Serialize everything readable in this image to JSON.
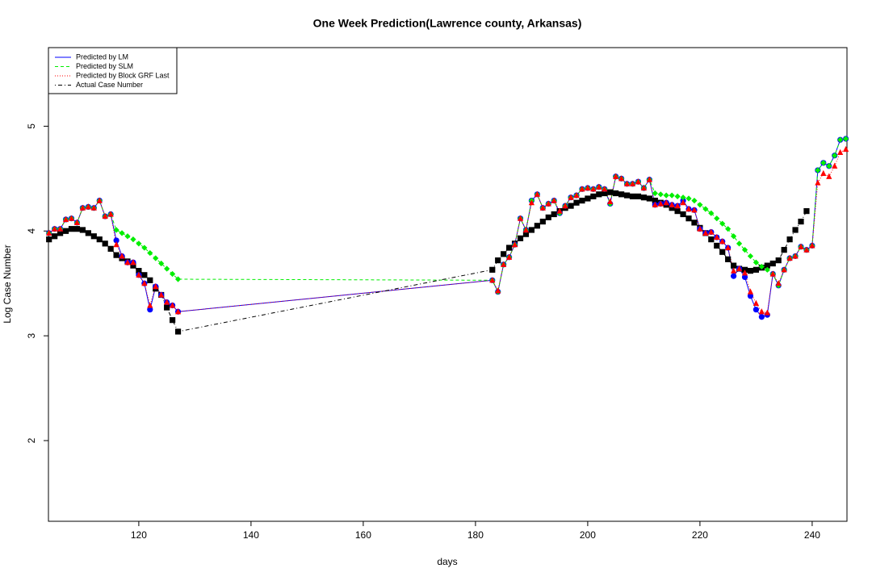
{
  "chart_data": {
    "type": "line",
    "title": "One Week Prediction(Lawrence county, Arkansas)",
    "x_label": "days",
    "y_label": "Log Case Number",
    "xlim": [
      103.9,
      246.2
    ],
    "ylim": [
      1.23,
      5.75
    ],
    "xticks": [
      120,
      140,
      160,
      180,
      200,
      220,
      240
    ],
    "yticks": [
      2,
      3,
      4,
      5
    ],
    "grid": false,
    "legend": "top-left",
    "x": [
      104,
      105,
      106,
      107,
      108,
      109,
      110,
      111,
      112,
      113,
      114,
      115,
      116,
      117,
      118,
      119,
      120,
      121,
      122,
      123,
      124,
      125,
      126,
      127,
      183,
      184,
      185,
      186,
      187,
      188,
      189,
      190,
      191,
      192,
      193,
      194,
      195,
      196,
      197,
      198,
      199,
      200,
      201,
      202,
      203,
      204,
      205,
      206,
      207,
      208,
      209,
      210,
      211,
      212,
      213,
      214,
      215,
      216,
      217,
      218,
      219,
      220,
      221,
      222,
      223,
      224,
      225,
      226,
      227,
      228,
      229,
      230,
      231,
      232,
      233,
      234,
      235,
      236,
      237,
      238,
      239,
      240,
      241,
      242,
      243,
      244,
      245,
      246
    ],
    "series": [
      {
        "name": "Predicted by LM",
        "color": "#0000ff",
        "line_style": "solid",
        "marker": "circle",
        "values": [
          3.98,
          4.02,
          4.02,
          4.11,
          4.12,
          4.08,
          4.22,
          4.23,
          4.22,
          4.29,
          4.14,
          4.16,
          3.91,
          3.76,
          3.7,
          3.7,
          3.58,
          3.5,
          3.25,
          3.47,
          3.39,
          3.32,
          3.29,
          3.23,
          3.53,
          3.42,
          3.68,
          3.75,
          3.87,
          4.12,
          4.01,
          4.29,
          4.35,
          4.22,
          4.26,
          4.29,
          4.17,
          4.24,
          4.32,
          4.34,
          4.4,
          4.41,
          4.4,
          4.42,
          4.4,
          4.26,
          4.52,
          4.5,
          4.45,
          4.45,
          4.47,
          4.41,
          4.49,
          4.25,
          4.26,
          4.27,
          4.25,
          4.24,
          4.29,
          4.21,
          4.2,
          4.02,
          3.98,
          3.99,
          3.94,
          3.9,
          3.84,
          3.57,
          3.64,
          3.56,
          3.38,
          3.25,
          3.18,
          3.2,
          3.59,
          3.48,
          3.63,
          3.74,
          3.76,
          3.85,
          3.82,
          3.86,
          4.58,
          4.65,
          4.62,
          4.72,
          4.87,
          4.88
        ]
      },
      {
        "name": "Predicted by SLM",
        "color": "#00ee00",
        "line_style": "dashed",
        "marker": "diamond",
        "values": [
          3.98,
          4.02,
          4.02,
          4.11,
          4.12,
          4.08,
          4.22,
          4.23,
          4.22,
          4.29,
          4.14,
          4.16,
          4.01,
          3.98,
          3.95,
          3.92,
          3.88,
          3.84,
          3.79,
          3.74,
          3.69,
          3.64,
          3.59,
          3.54,
          3.53,
          3.42,
          3.68,
          3.75,
          3.87,
          4.12,
          4.01,
          4.29,
          4.35,
          4.22,
          4.26,
          4.29,
          4.17,
          4.24,
          4.32,
          4.34,
          4.4,
          4.41,
          4.4,
          4.42,
          4.4,
          4.26,
          4.52,
          4.5,
          4.45,
          4.45,
          4.47,
          4.41,
          4.49,
          4.36,
          4.35,
          4.34,
          4.34,
          4.33,
          4.32,
          4.31,
          4.29,
          4.25,
          4.21,
          4.17,
          4.12,
          4.07,
          4.02,
          3.95,
          3.88,
          3.82,
          3.76,
          3.7,
          3.66,
          3.63,
          3.59,
          3.48,
          3.63,
          3.74,
          3.76,
          3.85,
          3.82,
          3.86,
          4.58,
          4.65,
          4.62,
          4.72,
          4.87,
          4.88
        ]
      },
      {
        "name": "Predicted by Block GRF Last",
        "color": "#ff0000",
        "line_style": "dotted",
        "marker": "triangle",
        "values": [
          3.98,
          4.02,
          4.02,
          4.11,
          4.12,
          4.08,
          4.22,
          4.23,
          4.22,
          4.29,
          4.14,
          4.16,
          3.87,
          3.76,
          3.7,
          3.7,
          3.58,
          3.5,
          3.29,
          3.47,
          3.39,
          3.32,
          3.29,
          3.23,
          3.53,
          3.43,
          3.68,
          3.75,
          3.87,
          4.12,
          4.01,
          4.27,
          4.35,
          4.22,
          4.26,
          4.29,
          4.19,
          4.24,
          4.32,
          4.34,
          4.4,
          4.41,
          4.4,
          4.42,
          4.4,
          4.28,
          4.52,
          4.5,
          4.45,
          4.45,
          4.47,
          4.41,
          4.49,
          4.25,
          4.26,
          4.27,
          4.25,
          4.24,
          4.27,
          4.21,
          4.2,
          4.02,
          3.98,
          3.99,
          3.94,
          3.9,
          3.84,
          3.62,
          3.64,
          3.6,
          3.42,
          3.31,
          3.23,
          3.22,
          3.59,
          3.5,
          3.63,
          3.74,
          3.76,
          3.85,
          3.82,
          3.86,
          4.46,
          4.55,
          4.52,
          4.62,
          4.75,
          4.78
        ]
      },
      {
        "name": "Actual Case Number",
        "color": "#000000",
        "line_style": "dotdash",
        "marker": "square",
        "values": [
          3.92,
          3.95,
          3.98,
          4.0,
          4.02,
          4.02,
          4.01,
          3.98,
          3.95,
          3.92,
          3.88,
          3.83,
          3.77,
          3.74,
          3.71,
          3.67,
          3.62,
          3.58,
          3.53,
          3.45,
          3.39,
          3.27,
          3.15,
          3.04,
          3.63,
          3.72,
          3.78,
          3.84,
          3.88,
          3.93,
          3.97,
          4.01,
          4.05,
          4.09,
          4.13,
          4.16,
          4.19,
          4.22,
          4.24,
          4.27,
          4.29,
          4.31,
          4.33,
          4.35,
          4.36,
          4.37,
          4.36,
          4.35,
          4.34,
          4.33,
          4.33,
          4.32,
          4.31,
          4.29,
          4.27,
          4.25,
          4.22,
          4.19,
          4.16,
          4.12,
          4.08,
          4.03,
          3.98,
          3.92,
          3.86,
          3.8,
          3.73,
          3.67,
          3.64,
          3.63,
          3.62,
          3.63,
          3.65,
          3.67,
          3.69,
          3.72,
          3.82,
          3.92,
          4.01,
          4.09,
          4.19,
          null,
          null,
          null,
          null,
          null,
          null,
          null
        ]
      }
    ]
  }
}
